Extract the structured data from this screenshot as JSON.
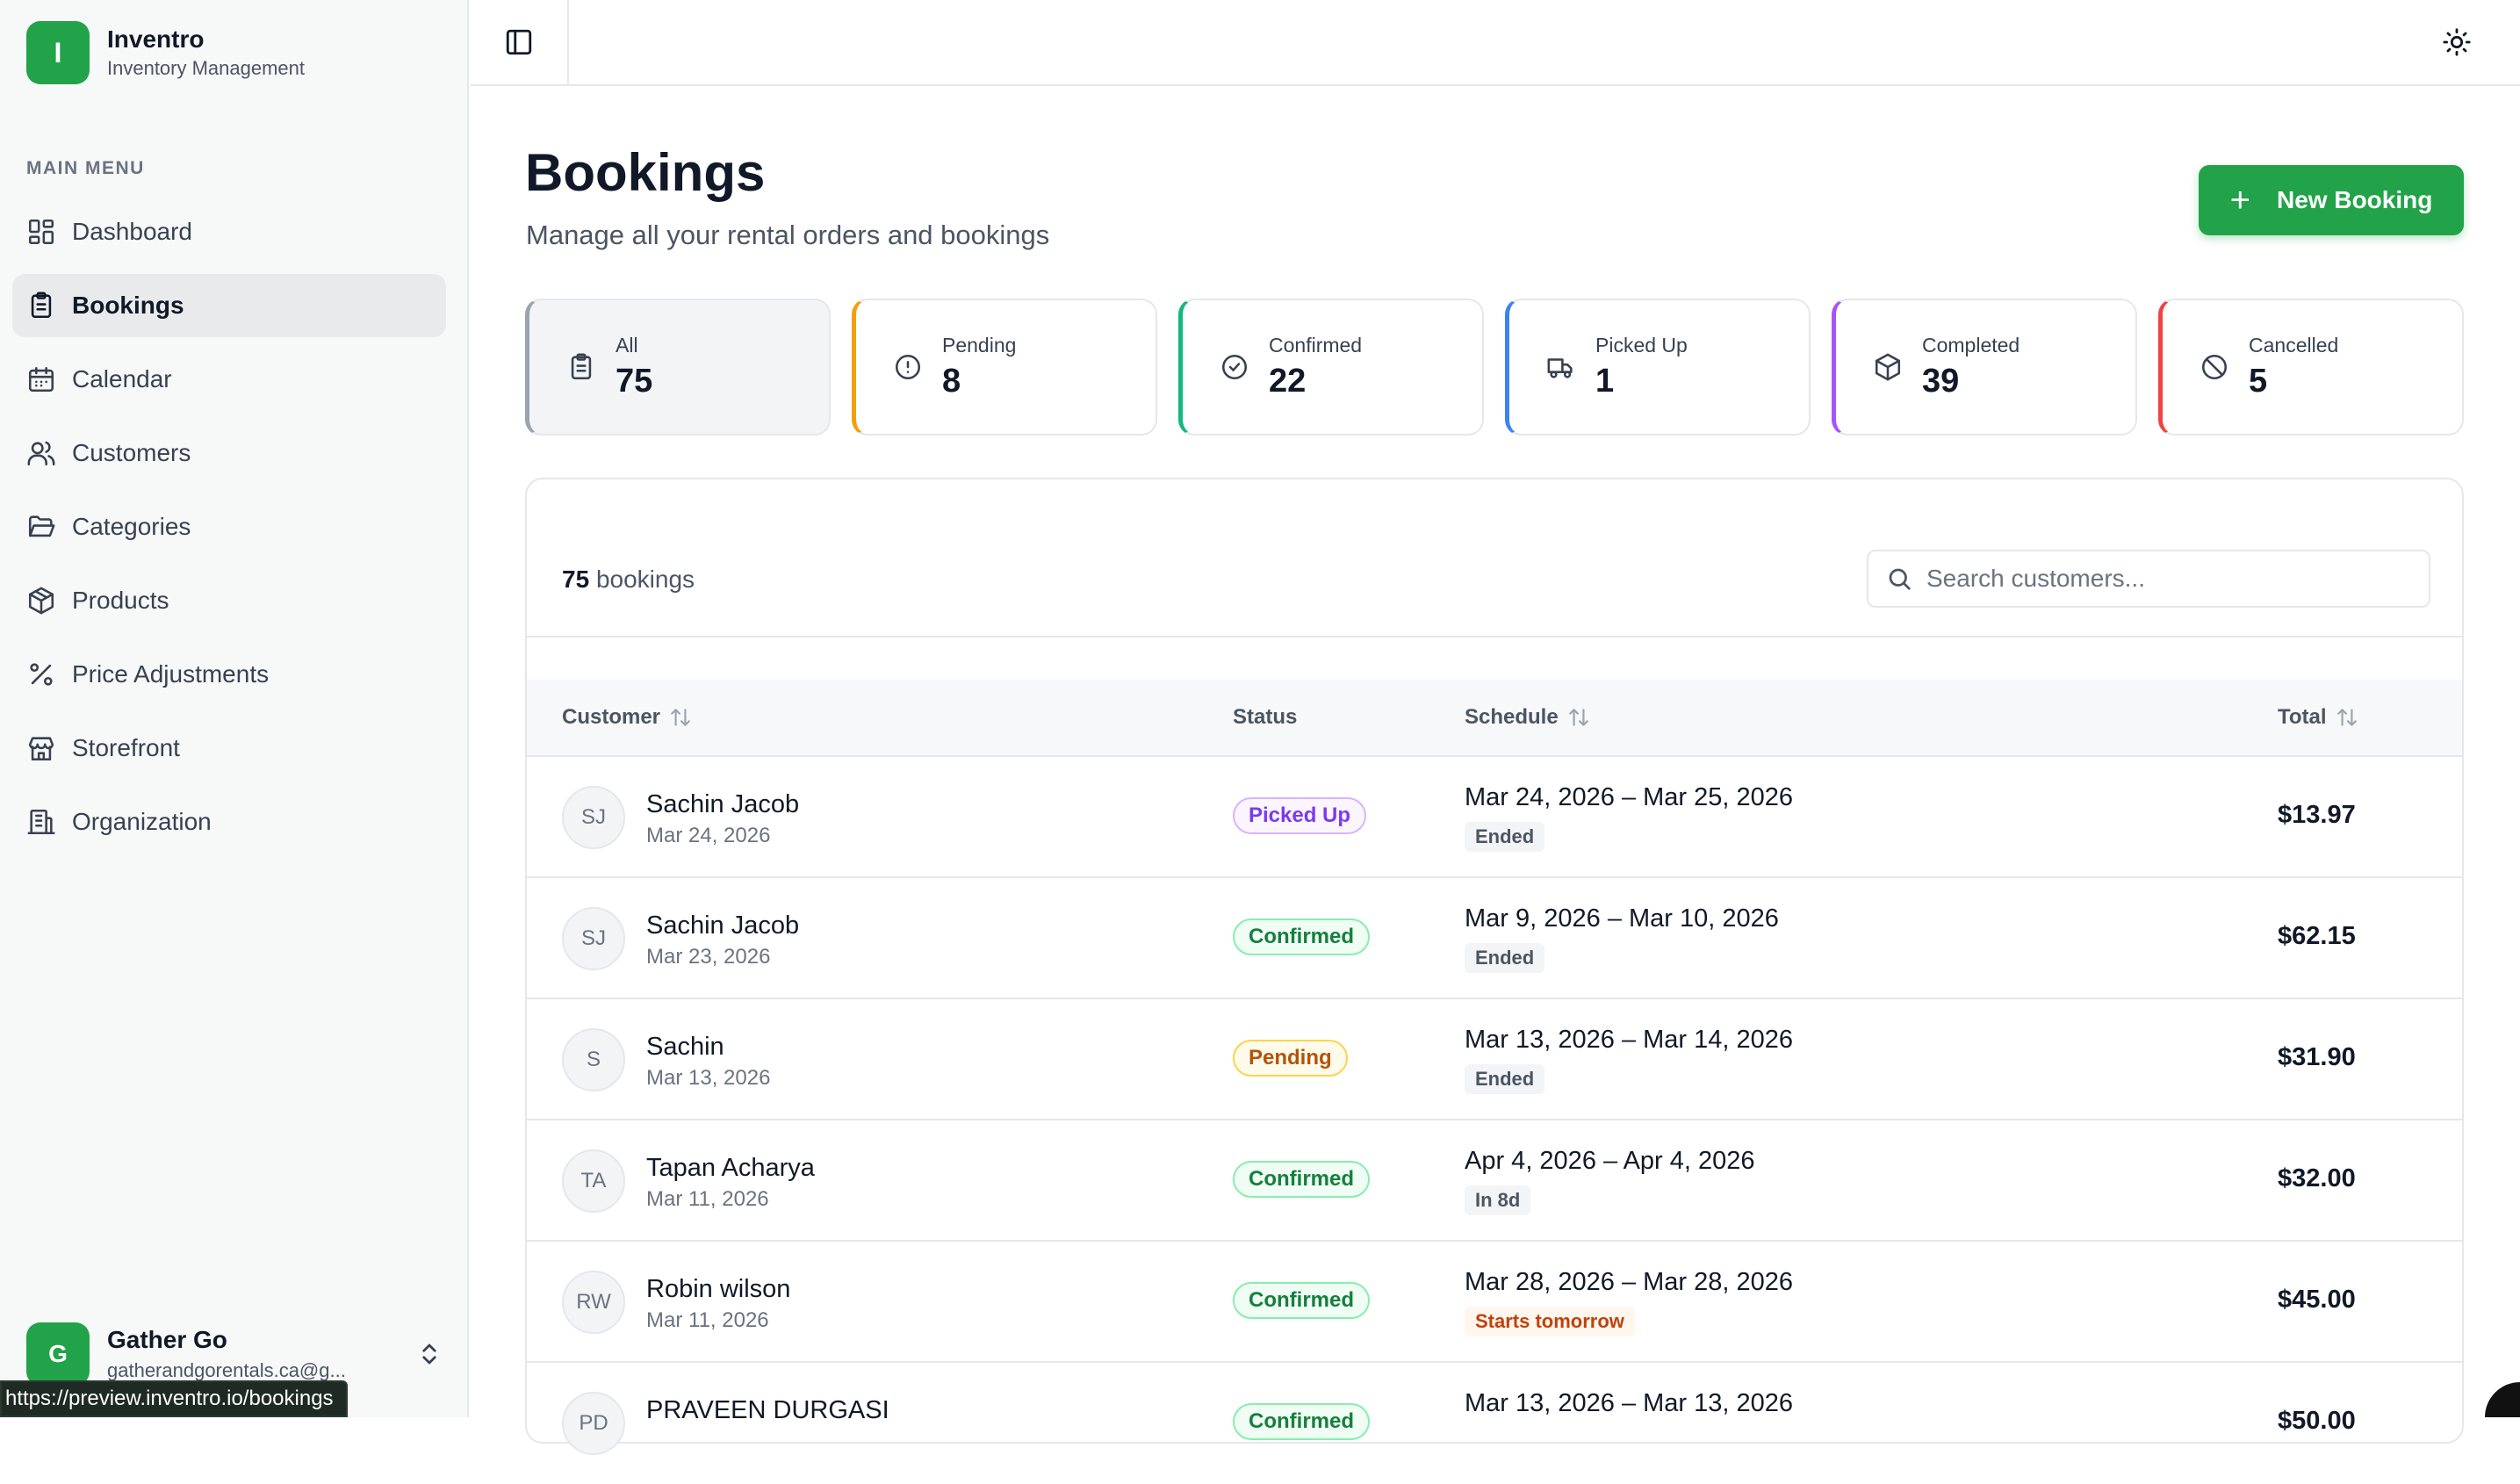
{
  "sidebar": {
    "brand": {
      "logo_letter": "I",
      "name": "Inventro",
      "subtitle": "Inventory Management"
    },
    "menu_title": "MAIN MENU",
    "items": [
      {
        "label": "Dashboard",
        "icon": "layout-dashboard-icon"
      },
      {
        "label": "Bookings",
        "icon": "clipboard-list-icon",
        "active": true
      },
      {
        "label": "Calendar",
        "icon": "calendar-icon"
      },
      {
        "label": "Customers",
        "icon": "users-icon"
      },
      {
        "label": "Categories",
        "icon": "folder-open-icon"
      },
      {
        "label": "Products",
        "icon": "package-icon"
      },
      {
        "label": "Price Adjustments",
        "icon": "percent-icon"
      },
      {
        "label": "Storefront",
        "icon": "store-icon"
      },
      {
        "label": "Organization",
        "icon": "building-icon"
      }
    ],
    "account": {
      "avatar_letter": "G",
      "name": "Gather Go",
      "email": "gatherandgorentals.ca@g..."
    }
  },
  "status_bar_url": "https://preview.inventro.io/bookings",
  "header": {
    "title": "Bookings",
    "subtitle": "Manage all your rental orders and bookings",
    "new_button_label": "New Booking"
  },
  "stats": [
    {
      "label": "All",
      "value": "75",
      "color": "#9ca3af",
      "icon": "clipboard-list-icon"
    },
    {
      "label": "Pending",
      "value": "8",
      "color": "#f59e0b",
      "icon": "alert-circle-icon"
    },
    {
      "label": "Confirmed",
      "value": "22",
      "color": "#10b981",
      "icon": "check-circle-icon"
    },
    {
      "label": "Picked Up",
      "value": "1",
      "color": "#3b82f6",
      "icon": "truck-icon"
    },
    {
      "label": "Completed",
      "value": "39",
      "color": "#a855f7",
      "icon": "package-icon"
    },
    {
      "label": "Cancelled",
      "value": "5",
      "color": "#ef4444",
      "icon": "ban-icon"
    }
  ],
  "table": {
    "count_number": "75",
    "count_label": "bookings",
    "search_placeholder": "Search customers...",
    "columns": [
      "Customer",
      "Status",
      "Schedule",
      "Total"
    ],
    "rows": [
      {
        "initials": "SJ",
        "name": "Sachin Jacob",
        "date": "Mar 24, 2026",
        "status": "Picked Up",
        "schedule": "Mar 24, 2026 – Mar 25, 2026",
        "tag": "Ended",
        "total": "$13.97"
      },
      {
        "initials": "SJ",
        "name": "Sachin Jacob",
        "date": "Mar 23, 2026",
        "status": "Confirmed",
        "schedule": "Mar 9, 2026 – Mar 10, 2026",
        "tag": "Ended",
        "total": "$62.15"
      },
      {
        "initials": "S",
        "name": "Sachin",
        "date": "Mar 13, 2026",
        "status": "Pending",
        "schedule": "Mar 13, 2026 – Mar 14, 2026",
        "tag": "Ended",
        "total": "$31.90"
      },
      {
        "initials": "TA",
        "name": "Tapan Acharya",
        "date": "Mar 11, 2026",
        "status": "Confirmed",
        "schedule": "Apr 4, 2026 – Apr 4, 2026",
        "tag": "In 8d",
        "total": "$32.00"
      },
      {
        "initials": "RW",
        "name": "Robin wilson",
        "date": "Mar 11, 2026",
        "status": "Confirmed",
        "schedule": "Mar 28, 2026 – Mar 28, 2026",
        "tag": "Starts tomorrow",
        "total": "$45.00"
      },
      {
        "initials": "PD",
        "name": "PRAVEEN DURGASI",
        "date": "",
        "status": "Confirmed",
        "schedule": "Mar 13, 2026 – Mar 13, 2026",
        "tag": "",
        "total": "$50.00"
      }
    ]
  },
  "colors": {
    "accent": "#22a34a",
    "status_picked_up": "#7c3aed",
    "status_confirmed": "#15803d",
    "status_pending": "#b45309",
    "tag_warning": "#c2410c"
  }
}
